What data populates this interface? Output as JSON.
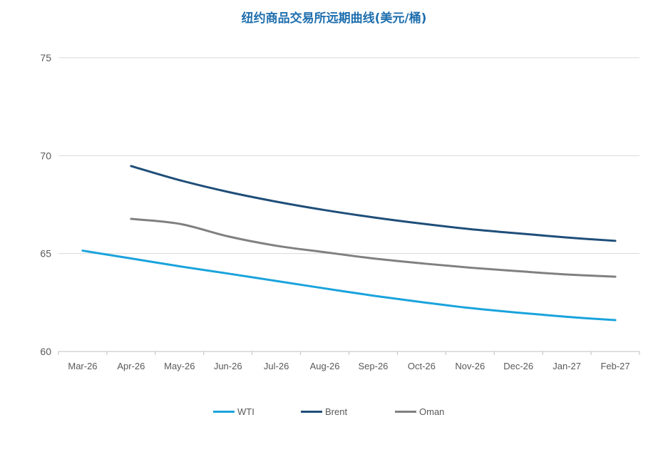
{
  "chart_data": {
    "type": "line",
    "title": "纽约商品交易所远期曲线(美元/桶)",
    "categories": [
      "Mar-26",
      "Apr-26",
      "May-26",
      "Jun-26",
      "Jul-26",
      "Aug-26",
      "Sep-26",
      "Oct-26",
      "Nov-26",
      "Dec-26",
      "Jan-27",
      "Feb-27"
    ],
    "ylim": [
      60,
      75
    ],
    "yticks": [
      60,
      65,
      70,
      75
    ],
    "grid": true,
    "legend_position": "bottom",
    "series": [
      {
        "name": "WTI",
        "color": "#1aa3dc",
        "values": [
          65.15,
          64.75,
          64.35,
          63.98,
          63.6,
          63.22,
          62.85,
          62.52,
          62.22,
          61.98,
          61.77,
          61.6
        ]
      },
      {
        "name": "Brent",
        "color": "#1f4e79",
        "values": [
          null,
          69.47,
          68.75,
          68.15,
          67.65,
          67.22,
          66.85,
          66.53,
          66.25,
          66.03,
          65.82,
          65.65
        ]
      },
      {
        "name": "Oman",
        "color": "#808080",
        "values": [
          null,
          66.77,
          66.52,
          65.88,
          65.4,
          65.07,
          64.75,
          64.5,
          64.28,
          64.1,
          63.93,
          63.82
        ]
      }
    ]
  }
}
